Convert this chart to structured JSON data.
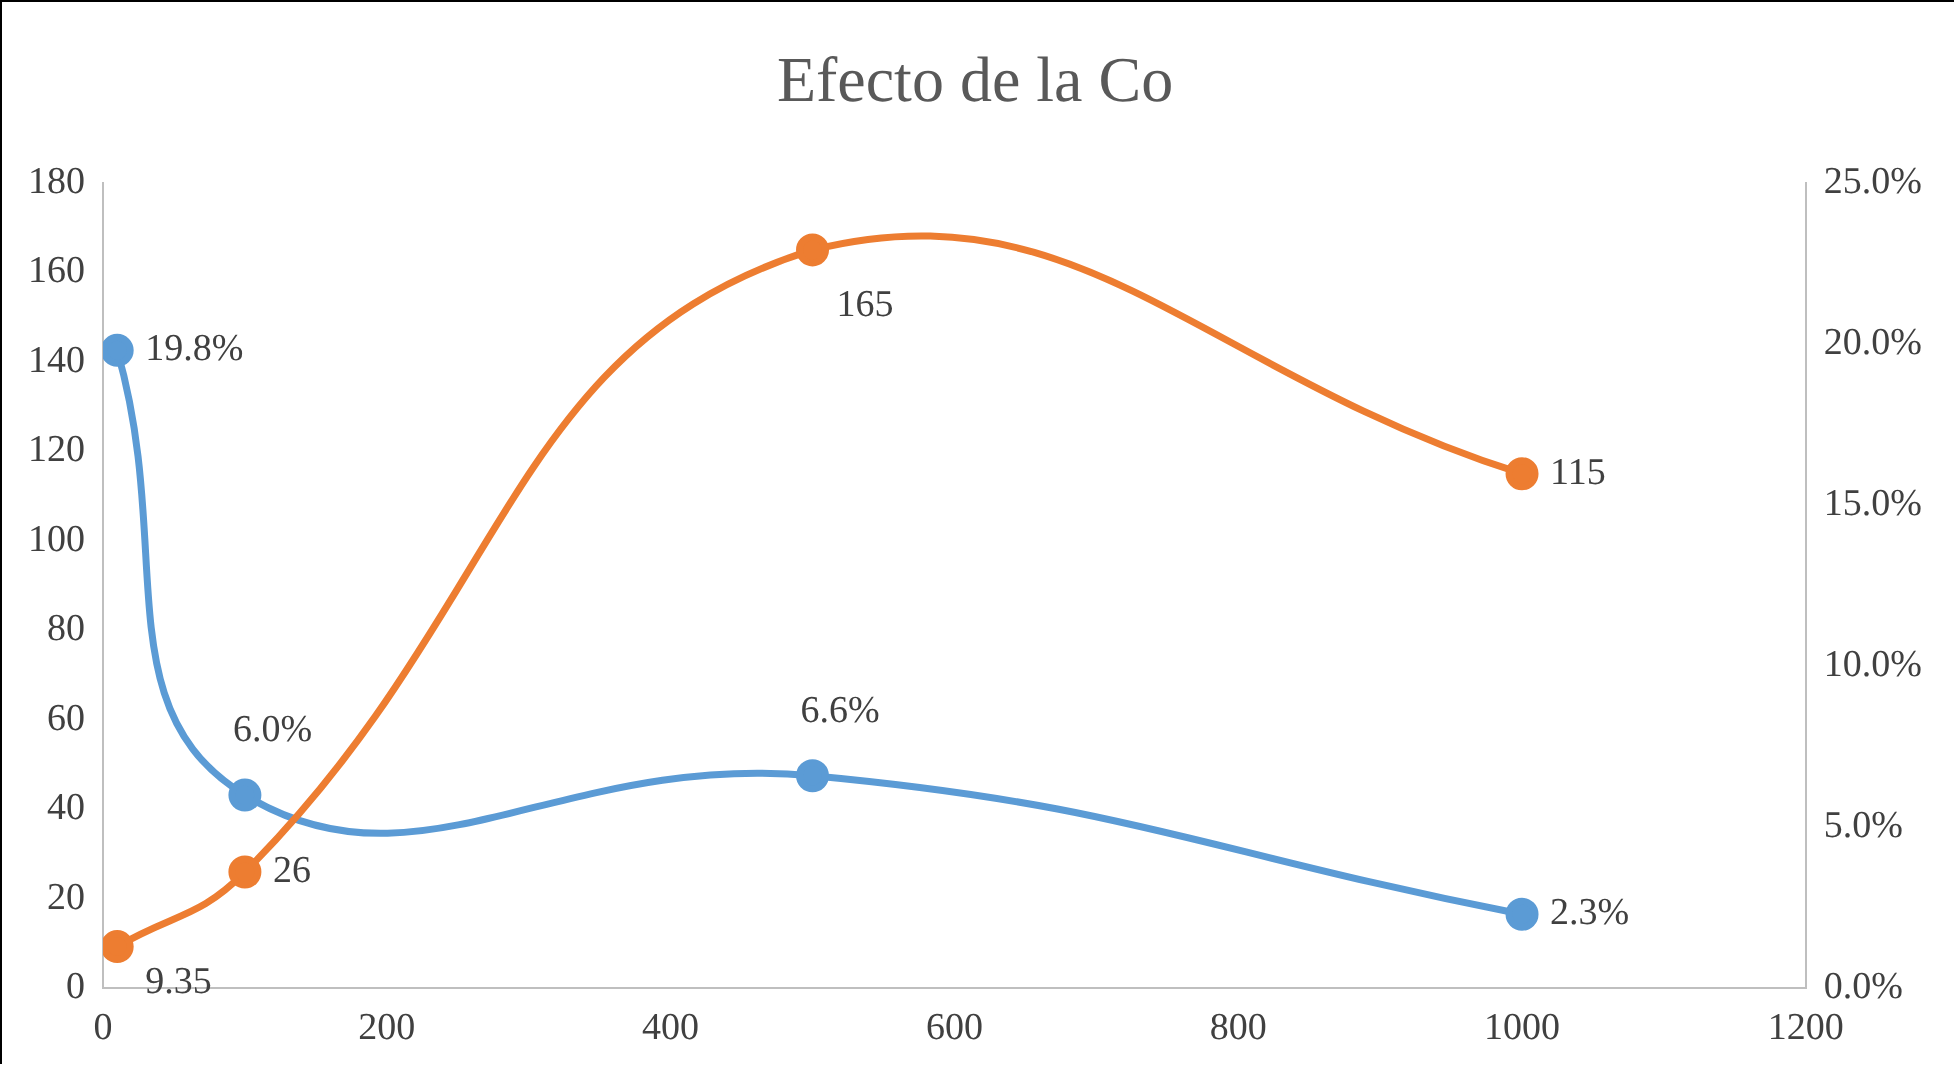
{
  "chart_data": {
    "type": "line",
    "title": "Efecto de la Co",
    "x": [
      10,
      100,
      500,
      1000
    ],
    "series": [
      {
        "color": "#ed7d31",
        "values": [
          9.35,
          26,
          165,
          115
        ],
        "value_labels": [
          "9.35",
          "26",
          "165",
          "115"
        ]
      },
      {
        "color": "#5b9bd5",
        "values": [
          19.8,
          6.0,
          6.6,
          2.3
        ],
        "axis": "y2",
        "value_labels": [
          "19.8%",
          "6.0%",
          "6.6%",
          "2.3%"
        ]
      }
    ],
    "xlim": [
      0,
      1200
    ],
    "xticks": [
      0,
      200,
      400,
      600,
      800,
      1000,
      1200
    ],
    "ylim": [
      0,
      180
    ],
    "yticks": [
      0,
      20,
      40,
      60,
      80,
      100,
      120,
      140,
      160,
      180
    ],
    "y2lim": [
      0,
      25
    ],
    "y2ticks": [
      {
        "value": 0,
        "label": "0.0%"
      },
      {
        "value": 5,
        "label": "5.0%"
      },
      {
        "value": 10,
        "label": "10.0%"
      },
      {
        "value": 15,
        "label": "15.0%"
      },
      {
        "value": 20,
        "label": "20.0%"
      },
      {
        "value": 25,
        "label": "25.0%"
      }
    ],
    "marker": "circle",
    "grid": false,
    "legend": false
  }
}
